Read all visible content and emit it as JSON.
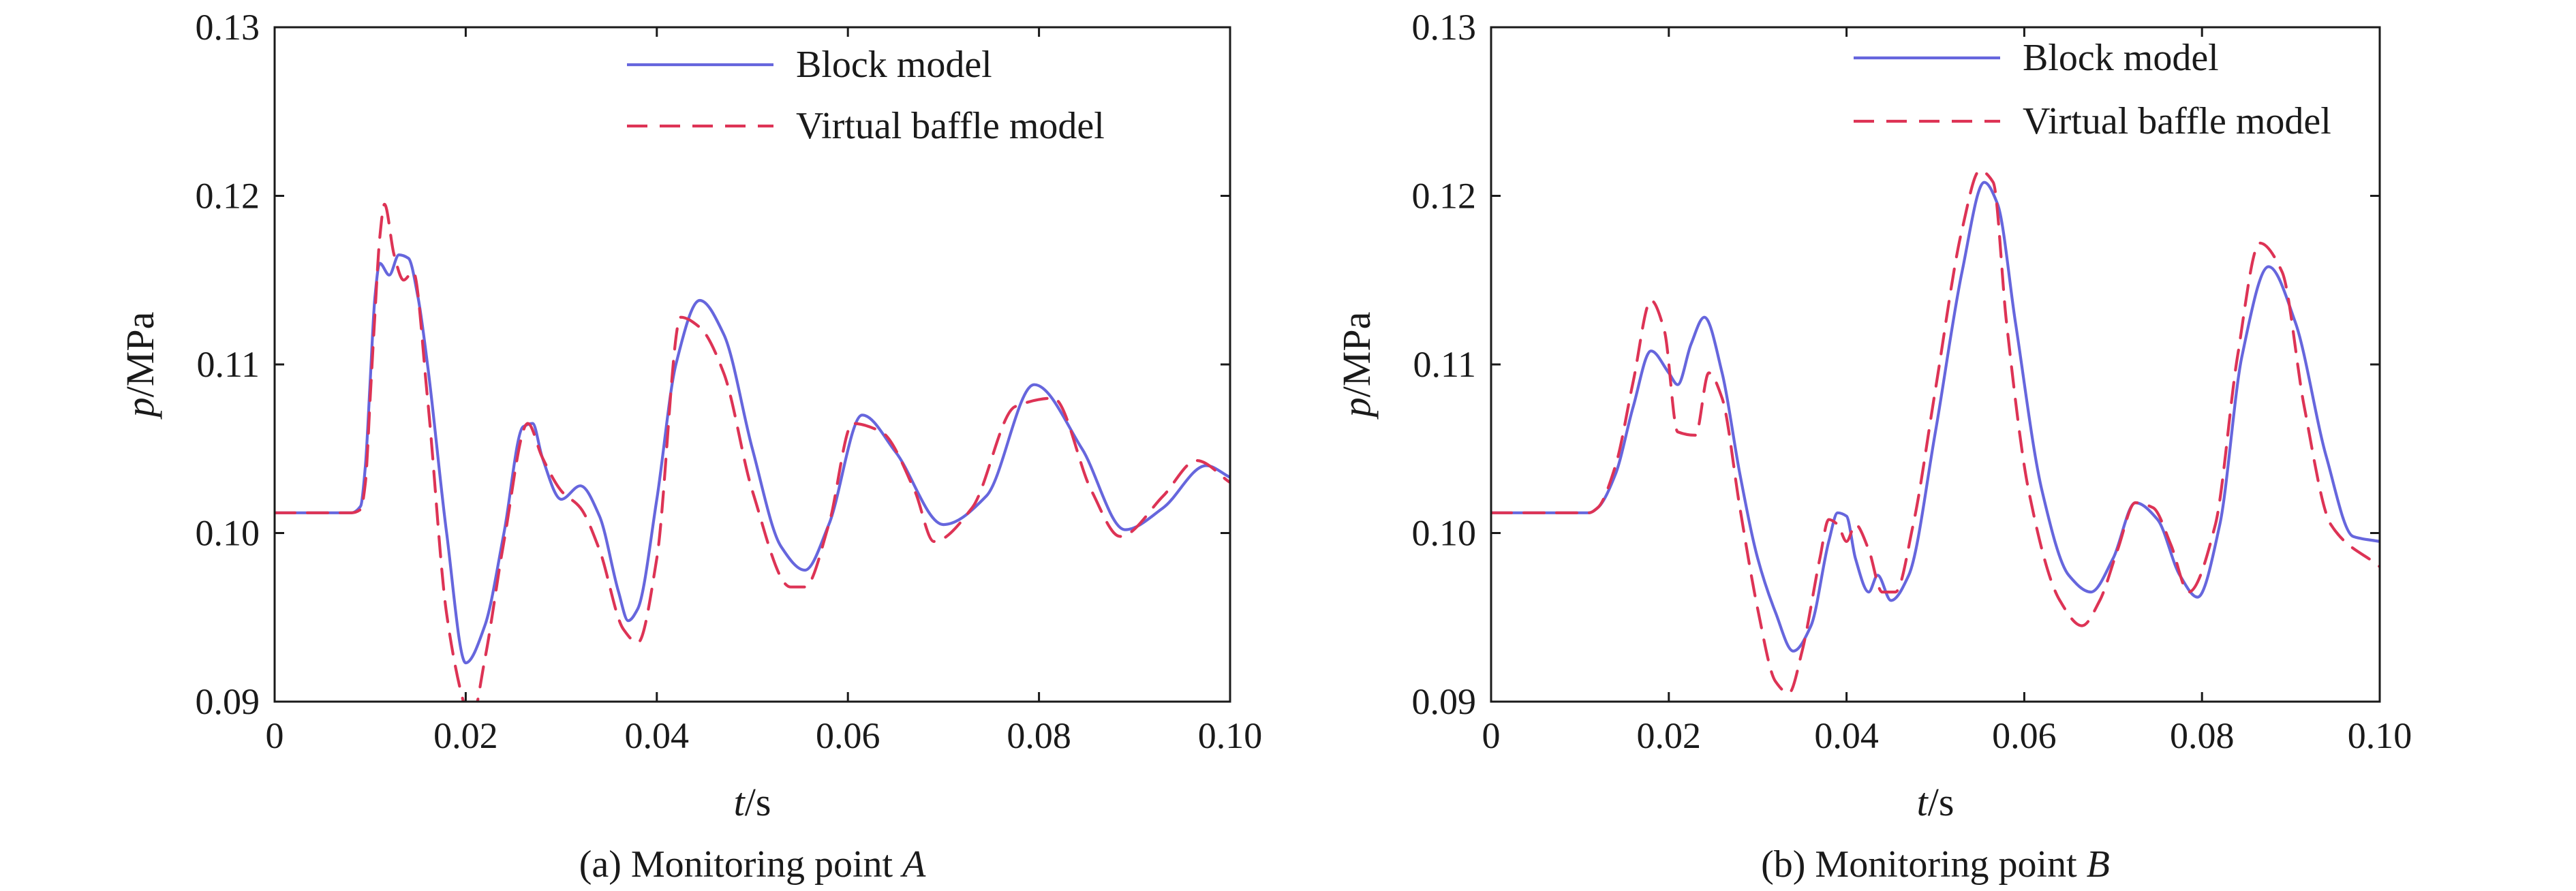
{
  "chart_data": [
    {
      "type": "line",
      "caption": {
        "prefix": "(a) Monitoring point ",
        "italic": "A"
      },
      "xlabel": {
        "italic": "t",
        "rest": "/s"
      },
      "ylabel": {
        "italic": "p",
        "rest": "/MPa"
      },
      "xlim": [
        0,
        0.1
      ],
      "ylim": [
        0.09,
        0.13
      ],
      "xticks": [
        0,
        0.02,
        0.04,
        0.06,
        0.08,
        0.1
      ],
      "xtick_labels": [
        "0",
        "0.02",
        "0.04",
        "0.06",
        "0.08",
        "0.10"
      ],
      "yticks": [
        0.09,
        0.1,
        0.11,
        0.12,
        0.13
      ],
      "ytick_labels": [
        "0.09",
        "0.10",
        "0.11",
        "0.12",
        "0.13"
      ],
      "legend_position": "top-right",
      "series": [
        {
          "name": "Block model",
          "color": "#6666dd",
          "style": "solid",
          "x": [
            0,
            0.008,
            0.009,
            0.0095,
            0.01,
            0.0105,
            0.011,
            0.012,
            0.013,
            0.014,
            0.015,
            0.016,
            0.018,
            0.02,
            0.022,
            0.024,
            0.026,
            0.027,
            0.028,
            0.03,
            0.032,
            0.034,
            0.036,
            0.037,
            0.038,
            0.04,
            0.042,
            0.0445,
            0.047,
            0.05,
            0.053,
            0.0555,
            0.058,
            0.0615,
            0.065,
            0.07,
            0.0745,
            0.0795,
            0.0845,
            0.089,
            0.093,
            0.0975,
            0.1
          ],
          "values": [
            0.1012,
            0.1012,
            0.1016,
            0.104,
            0.109,
            0.114,
            0.116,
            0.1153,
            0.1165,
            0.1163,
            0.114,
            0.11,
            0.1,
            0.0923,
            0.0945,
            0.1,
            0.1063,
            0.1065,
            0.1045,
            0.102,
            0.1028,
            0.101,
            0.0965,
            0.0948,
            0.0955,
            0.102,
            0.11,
            0.1138,
            0.1118,
            0.105,
            0.0992,
            0.0978,
            0.1005,
            0.107,
            0.1048,
            0.1005,
            0.1022,
            0.1088,
            0.105,
            0.1002,
            0.1015,
            0.104,
            0.1033
          ]
        },
        {
          "name": "Virtual baffle model",
          "color": "#dd3355",
          "style": "dashed",
          "x": [
            0,
            0.008,
            0.009,
            0.0095,
            0.01,
            0.0105,
            0.011,
            0.0115,
            0.0125,
            0.0135,
            0.0145,
            0.016,
            0.018,
            0.02,
            0.0205,
            0.022,
            0.024,
            0.0265,
            0.028,
            0.03,
            0.032,
            0.034,
            0.0365,
            0.038,
            0.04,
            0.0425,
            0.0445,
            0.047,
            0.05,
            0.054,
            0.0555,
            0.058,
            0.0605,
            0.0635,
            0.067,
            0.069,
            0.073,
            0.0775,
            0.0815,
            0.0855,
            0.0885,
            0.093,
            0.0965,
            0.1
          ],
          "values": [
            0.1012,
            0.1012,
            0.1014,
            0.103,
            0.108,
            0.113,
            0.1175,
            0.1195,
            0.1165,
            0.115,
            0.1155,
            0.108,
            0.0952,
            0.0895,
            0.0887,
            0.0925,
            0.0995,
            0.1065,
            0.1045,
            0.1025,
            0.1015,
            0.099,
            0.0943,
            0.0935,
            0.0985,
            0.1128,
            0.1122,
            0.1095,
            0.1025,
            0.0968,
            0.0968,
            0.1005,
            0.1065,
            0.106,
            0.1025,
            0.0995,
            0.1015,
            0.1075,
            0.108,
            0.1025,
            0.0998,
            0.1022,
            0.1043,
            0.103
          ]
        }
      ]
    },
    {
      "type": "line",
      "caption": {
        "prefix": "(b) Monitoring point ",
        "italic": "B"
      },
      "xlabel": {
        "italic": "t",
        "rest": "/s"
      },
      "ylabel": {
        "italic": "p",
        "rest": "/MPa"
      },
      "xlim": [
        0,
        0.1
      ],
      "ylim": [
        0.09,
        0.13
      ],
      "xticks": [
        0,
        0.02,
        0.04,
        0.06,
        0.08,
        0.1
      ],
      "xtick_labels": [
        "0",
        "0.02",
        "0.04",
        "0.06",
        "0.08",
        "0.10"
      ],
      "yticks": [
        0.09,
        0.1,
        0.11,
        0.12,
        0.13
      ],
      "ytick_labels": [
        "0.09",
        "0.10",
        "0.11",
        "0.12",
        "0.13"
      ],
      "legend_position": "top-right",
      "series": [
        {
          "name": "Block model",
          "color": "#6666dd",
          "style": "solid",
          "x": [
            0,
            0.011,
            0.012,
            0.014,
            0.016,
            0.018,
            0.02,
            0.021,
            0.0225,
            0.024,
            0.026,
            0.028,
            0.03,
            0.032,
            0.034,
            0.036,
            0.038,
            0.039,
            0.04,
            0.041,
            0.0425,
            0.0435,
            0.045,
            0.047,
            0.05,
            0.053,
            0.0555,
            0.057,
            0.059,
            0.062,
            0.065,
            0.0675,
            0.07,
            0.0725,
            0.075,
            0.0775,
            0.0795,
            0.082,
            0.0845,
            0.0875,
            0.0905,
            0.094,
            0.097,
            0.1
          ],
          "values": [
            0.1012,
            0.1012,
            0.1015,
            0.1035,
            0.1075,
            0.1108,
            0.1095,
            0.1088,
            0.1112,
            0.1128,
            0.1095,
            0.1035,
            0.0985,
            0.0953,
            0.093,
            0.0945,
            0.0995,
            0.1012,
            0.101,
            0.0985,
            0.0965,
            0.0975,
            0.096,
            0.0975,
            0.106,
            0.1155,
            0.1208,
            0.1195,
            0.1125,
            0.1025,
            0.0975,
            0.0965,
            0.0985,
            0.1018,
            0.1008,
            0.0975,
            0.0962,
            0.1005,
            0.1105,
            0.1158,
            0.1125,
            0.1045,
            0.0998,
            0.0995
          ]
        },
        {
          "name": "Virtual baffle model",
          "color": "#dd3355",
          "style": "dashed",
          "x": [
            0,
            0.011,
            0.012,
            0.014,
            0.016,
            0.018,
            0.0195,
            0.021,
            0.023,
            0.0245,
            0.026,
            0.028,
            0.03,
            0.032,
            0.0335,
            0.035,
            0.037,
            0.038,
            0.039,
            0.04,
            0.041,
            0.0425,
            0.044,
            0.0455,
            0.0475,
            0.05,
            0.053,
            0.055,
            0.0565,
            0.058,
            0.0605,
            0.064,
            0.0665,
            0.0685,
            0.0705,
            0.0725,
            0.0745,
            0.0765,
            0.0785,
            0.0815,
            0.084,
            0.0865,
            0.089,
            0.0915,
            0.0945,
            0.1
          ],
          "values": [
            0.1012,
            0.1012,
            0.1015,
            0.104,
            0.109,
            0.1138,
            0.112,
            0.106,
            0.1058,
            0.1095,
            0.108,
            0.1015,
            0.0955,
            0.0912,
            0.0905,
            0.093,
            0.0985,
            0.1008,
            0.1005,
            0.0995,
            0.1005,
            0.099,
            0.0965,
            0.0965,
            0.1005,
            0.1085,
            0.118,
            0.1215,
            0.1208,
            0.1125,
            0.1025,
            0.096,
            0.0945,
            0.096,
            0.099,
            0.1018,
            0.1015,
            0.0993,
            0.0965,
            0.1005,
            0.1105,
            0.1172,
            0.1155,
            0.1075,
            0.1005,
            0.098
          ]
        }
      ]
    }
  ]
}
